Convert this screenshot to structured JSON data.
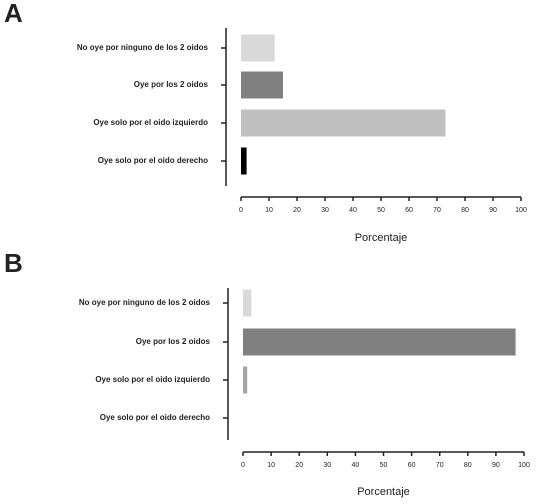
{
  "chart_data": [
    {
      "type": "barh",
      "title": "A",
      "categories": [
        "No oye por ninguno de los 2 oidos",
        "Oye por los 2 oidos",
        "Oye solo por el oido izquierdo",
        "Oye solo por el oido derecho"
      ],
      "values": [
        12,
        15,
        73,
        2
      ],
      "colors": [
        "#d9d9d9",
        "#808080",
        "#c0c0c0",
        "#000000"
      ],
      "xlim": [
        0,
        100
      ],
      "xticks": [
        0,
        10,
        20,
        30,
        40,
        50,
        60,
        70,
        80,
        90,
        100
      ],
      "xlabel": "Porcentaje"
    },
    {
      "type": "barh",
      "title": "B",
      "categories": [
        "No oye por ninguno de los 2 oidos",
        "Oye por los 2 oidos",
        "Oye solo por el oido izquierdo",
        "Oye solo por el oido derecho"
      ],
      "values": [
        3,
        97,
        1.5,
        0
      ],
      "colors": [
        "#d9d9d9",
        "#808080",
        "#a6a6a6",
        "#000000"
      ],
      "xlim": [
        0,
        100
      ],
      "xticks": [
        0,
        10,
        20,
        30,
        40,
        50,
        60,
        70,
        80,
        90,
        100
      ],
      "xlabel": "Porcentaje"
    }
  ]
}
